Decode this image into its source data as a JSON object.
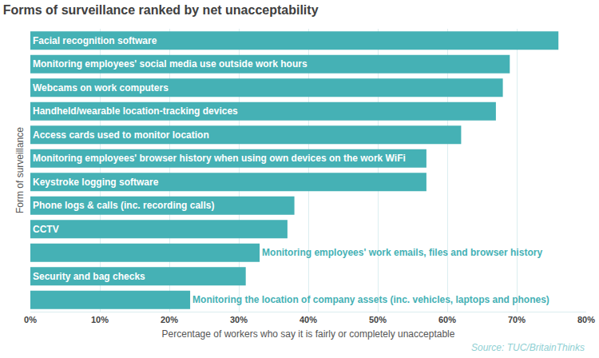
{
  "chart_data": {
    "type": "bar",
    "orientation": "horizontal",
    "title": "Forms of surveillance ranked by net unacceptability",
    "x_label": "Percentage of workers who say it is fairly or completely unacceptable",
    "y_label": "Form of surveillance",
    "categories": [
      "Facial recognition software",
      "Monitoring employees' social media use outside work hours",
      "Webcams on work computers",
      "Handheld/wearable location-tracking devices",
      "Access cards used to monitor location",
      "Monitoring employees' browser history when using own devices on the work WiFi",
      "Keystroke logging software",
      "Phone logs & calls (inc. recording calls)",
      "CCTV",
      "Monitoring employees' work emails, files and browser history",
      "Security and bag checks",
      "Monitoring the location of company assets (inc. vehicles, laptops and phones)"
    ],
    "values": [
      76,
      69,
      68,
      67,
      62,
      57,
      57,
      38,
      37,
      33,
      31,
      23
    ],
    "color": "#45b1b5",
    "xlim": [
      0,
      80
    ],
    "xticks": [
      {
        "value": 0,
        "label": "0%"
      },
      {
        "value": 10,
        "label": "10%"
      },
      {
        "value": 20,
        "label": "20%"
      },
      {
        "value": 30,
        "label": "30%"
      },
      {
        "value": 40,
        "label": "40%"
      },
      {
        "value": 50,
        "label": "50%"
      },
      {
        "value": 60,
        "label": "60%"
      },
      {
        "value": 70,
        "label": "70%"
      },
      {
        "value": 80,
        "label": "80%"
      }
    ],
    "grid": true,
    "tick_labels": "x",
    "annotations": [
      {
        "text": "Source: TUC/BritainThinks"
      }
    ]
  }
}
